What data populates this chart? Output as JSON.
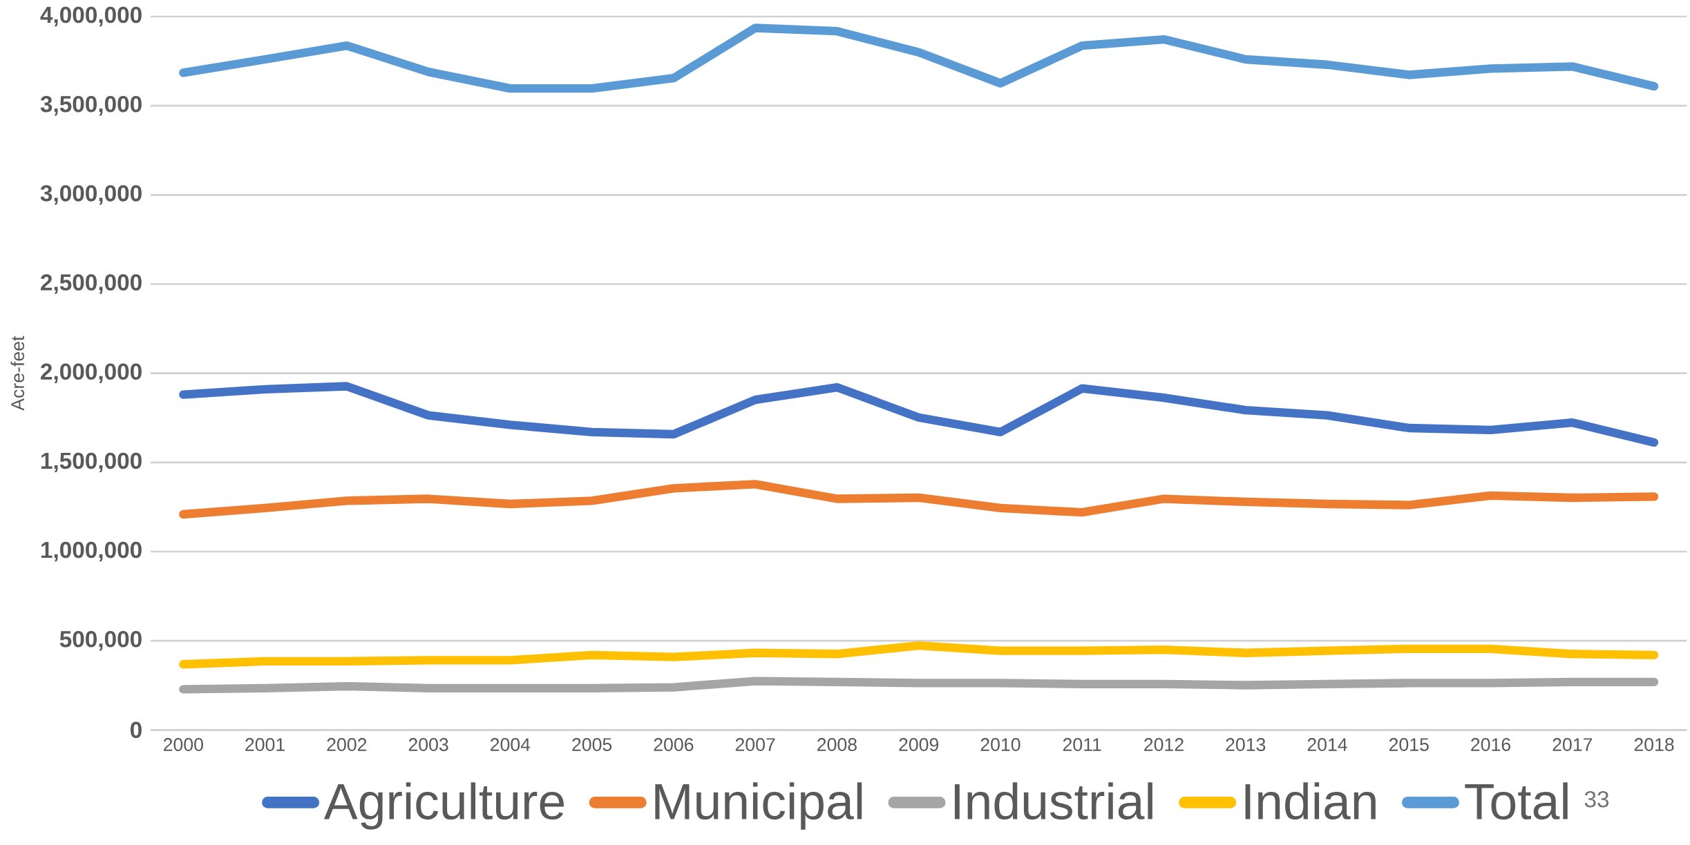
{
  "chart_data": {
    "type": "line",
    "ylabel": "Acre-feet",
    "categories": [
      "2000",
      "2001",
      "2002",
      "2003",
      "2004",
      "2005",
      "2006",
      "2007",
      "2008",
      "2009",
      "2010",
      "2011",
      "2012",
      "2013",
      "2014",
      "2015",
      "2016",
      "2017",
      "2018"
    ],
    "series": [
      {
        "name": "Agriculture",
        "color": "#4472c4",
        "values": [
          1880000,
          1910000,
          1927000,
          1764000,
          1711000,
          1670000,
          1658000,
          1851000,
          1921000,
          1752000,
          1670000,
          1915000,
          1863000,
          1793000,
          1764000,
          1693000,
          1682000,
          1723000,
          1612000
        ]
      },
      {
        "name": "Municipal",
        "color": "#ed7d31",
        "values": [
          1209000,
          1244000,
          1285000,
          1296000,
          1267000,
          1285000,
          1355000,
          1378000,
          1296000,
          1302000,
          1244000,
          1220000,
          1296000,
          1279000,
          1267000,
          1261000,
          1314000,
          1302000,
          1308000
        ]
      },
      {
        "name": "Industrial",
        "color": "#a5a5a5",
        "values": [
          228000,
          234000,
          245000,
          234000,
          234000,
          234000,
          239000,
          274000,
          269000,
          263000,
          263000,
          257000,
          257000,
          251000,
          257000,
          263000,
          263000,
          269000,
          269000
        ]
      },
      {
        "name": "Indian",
        "color": "#ffc000",
        "values": [
          368000,
          385000,
          385000,
          391000,
          391000,
          420000,
          409000,
          432000,
          426000,
          473000,
          444000,
          444000,
          450000,
          432000,
          444000,
          455000,
          455000,
          426000,
          420000
        ]
      },
      {
        "name": "Total",
        "color": "#5b9bd5",
        "values": [
          3685000,
          3760000,
          3837000,
          3690000,
          3597000,
          3597000,
          3655000,
          3936000,
          3918000,
          3800000,
          3626000,
          3837000,
          3872000,
          3760000,
          3730000,
          3673000,
          3708000,
          3720000,
          3609000
        ]
      }
    ],
    "ylim": [
      0,
      4000000
    ],
    "yticks": [
      0,
      {
        "value": 500000,
        "label": "500,000"
      },
      {
        "value": 1000000,
        "label": "1,000,000"
      },
      {
        "value": 1500000,
        "label": "1,500,000"
      },
      {
        "value": 2000000,
        "label": "2,000,000"
      },
      {
        "value": 2500000,
        "label": "2,500,000"
      },
      {
        "value": 3000000,
        "label": "3,000,000"
      },
      {
        "value": 3500000,
        "label": "3,500,000"
      },
      {
        "value": 4000000,
        "label": "4,000,000"
      }
    ],
    "grid": "y",
    "legend": "bottom",
    "line_style": "solid",
    "annotations": [
      "33"
    ]
  }
}
